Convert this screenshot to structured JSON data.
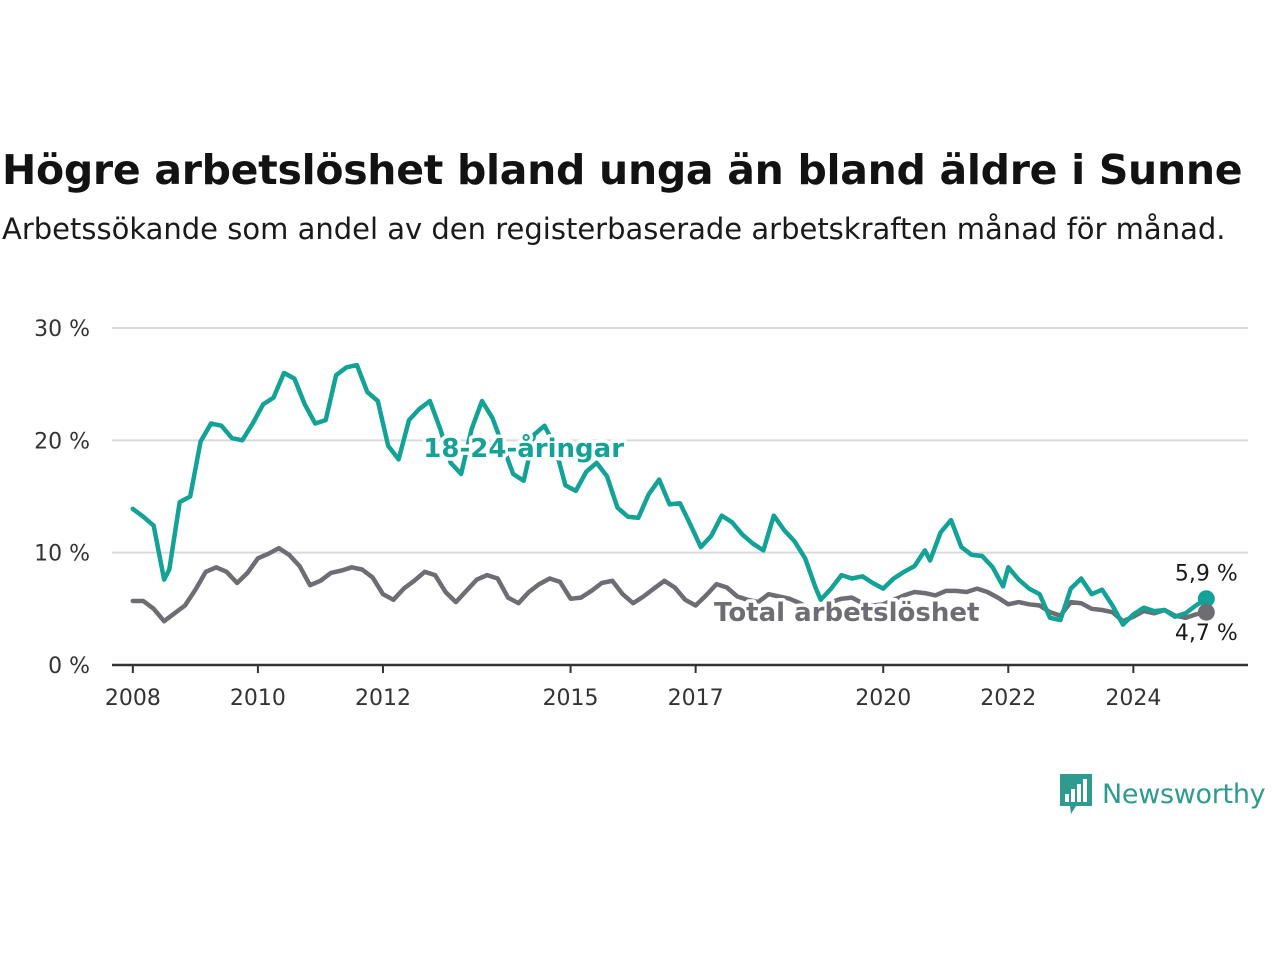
{
  "title": "Högre arbetslöshet bland unga än bland äldre i Sunne",
  "subtitle": "Arbetssökande som andel av den registerbaserade arbetskraften månad för månad.",
  "brand": {
    "name": "Newsworthy",
    "icon": "newsworthy-logo-icon"
  },
  "colors": {
    "youth": "#12a296",
    "total": "#6e6d73",
    "grid": "#d9d9de",
    "axis": "#333333"
  },
  "chart_data": {
    "type": "line",
    "title": "Högre arbetslöshet bland unga än bland äldre i Sunne",
    "subtitle": "Arbetssökande som andel av den registerbaserade arbetskraften månad för månad.",
    "x_tick_labels": [
      "2008",
      "2010",
      "2012",
      "2015",
      "2017",
      "2020",
      "2022",
      "2024"
    ],
    "y_tick_labels": [
      "0 %",
      "10 %",
      "20 %",
      "30 %"
    ],
    "ylim": [
      0,
      30
    ],
    "xlim": [
      "2007-09",
      "2025-11"
    ],
    "grid": "horizontal",
    "series": [
      {
        "name": "18-24-åringar",
        "end_label": "5,9 %",
        "points": [
          [
            "2008-01",
            13.9
          ],
          [
            "2008-03",
            13.2
          ],
          [
            "2008-05",
            12.4
          ],
          [
            "2008-07",
            7.6
          ],
          [
            "2008-08",
            8.5
          ],
          [
            "2008-10",
            14.5
          ],
          [
            "2008-12",
            15.0
          ],
          [
            "2009-02",
            19.9
          ],
          [
            "2009-04",
            21.5
          ],
          [
            "2009-06",
            21.3
          ],
          [
            "2009-08",
            20.2
          ],
          [
            "2009-10",
            20.0
          ],
          [
            "2009-12",
            21.5
          ],
          [
            "2010-02",
            23.2
          ],
          [
            "2010-04",
            23.8
          ],
          [
            "2010-06",
            26.0
          ],
          [
            "2010-08",
            25.5
          ],
          [
            "2010-10",
            23.2
          ],
          [
            "2010-12",
            21.5
          ],
          [
            "2011-02",
            21.8
          ],
          [
            "2011-04",
            25.8
          ],
          [
            "2011-06",
            26.5
          ],
          [
            "2011-08",
            26.7
          ],
          [
            "2011-10",
            24.3
          ],
          [
            "2011-12",
            23.5
          ],
          [
            "2012-02",
            19.5
          ],
          [
            "2012-04",
            18.3
          ],
          [
            "2012-06",
            21.8
          ],
          [
            "2012-08",
            22.8
          ],
          [
            "2012-10",
            23.5
          ],
          [
            "2012-12",
            21.0
          ],
          [
            "2013-02",
            18.0
          ],
          [
            "2013-04",
            17.0
          ],
          [
            "2013-06",
            21.0
          ],
          [
            "2013-08",
            23.5
          ],
          [
            "2013-10",
            22.0
          ],
          [
            "2013-12",
            19.5
          ],
          [
            "2014-02",
            17.0
          ],
          [
            "2014-04",
            16.4
          ],
          [
            "2014-06",
            20.5
          ],
          [
            "2014-08",
            21.3
          ],
          [
            "2014-10",
            19.5
          ],
          [
            "2014-12",
            16.0
          ],
          [
            "2015-02",
            15.5
          ],
          [
            "2015-04",
            17.2
          ],
          [
            "2015-06",
            18.0
          ],
          [
            "2015-08",
            16.8
          ],
          [
            "2015-10",
            14.0
          ],
          [
            "2015-12",
            13.2
          ],
          [
            "2016-02",
            13.1
          ],
          [
            "2016-04",
            15.2
          ],
          [
            "2016-06",
            16.5
          ],
          [
            "2016-08",
            14.3
          ],
          [
            "2016-10",
            14.4
          ],
          [
            "2016-12",
            12.5
          ],
          [
            "2017-02",
            10.5
          ],
          [
            "2017-04",
            11.5
          ],
          [
            "2017-06",
            13.3
          ],
          [
            "2017-08",
            12.7
          ],
          [
            "2017-10",
            11.6
          ],
          [
            "2017-12",
            10.8
          ],
          [
            "2018-02",
            10.2
          ],
          [
            "2018-04",
            13.3
          ],
          [
            "2018-06",
            12.0
          ],
          [
            "2018-08",
            11.0
          ],
          [
            "2018-10",
            9.5
          ],
          [
            "2018-12",
            6.9
          ],
          [
            "2019-01",
            5.8
          ],
          [
            "2019-03",
            6.8
          ],
          [
            "2019-05",
            8.0
          ],
          [
            "2019-07",
            7.7
          ],
          [
            "2019-09",
            7.9
          ],
          [
            "2019-11",
            7.3
          ],
          [
            "2020-01",
            6.8
          ],
          [
            "2020-03",
            7.7
          ],
          [
            "2020-05",
            8.3
          ],
          [
            "2020-07",
            8.8
          ],
          [
            "2020-09",
            10.2
          ],
          [
            "2020-10",
            9.3
          ],
          [
            "2020-12",
            11.8
          ],
          [
            "2021-02",
            12.9
          ],
          [
            "2021-04",
            10.5
          ],
          [
            "2021-06",
            9.8
          ],
          [
            "2021-08",
            9.7
          ],
          [
            "2021-10",
            8.7
          ],
          [
            "2021-12",
            7.0
          ],
          [
            "2022-01",
            8.7
          ],
          [
            "2022-03",
            7.6
          ],
          [
            "2022-05",
            6.8
          ],
          [
            "2022-07",
            6.3
          ],
          [
            "2022-09",
            4.2
          ],
          [
            "2022-11",
            4.0
          ],
          [
            "2023-01",
            6.8
          ],
          [
            "2023-03",
            7.7
          ],
          [
            "2023-05",
            6.3
          ],
          [
            "2023-07",
            6.7
          ],
          [
            "2023-09",
            5.3
          ],
          [
            "2023-11",
            3.6
          ],
          [
            "2024-01",
            4.5
          ],
          [
            "2024-03",
            5.1
          ],
          [
            "2024-05",
            4.8
          ],
          [
            "2024-07",
            4.9
          ],
          [
            "2024-09",
            4.3
          ],
          [
            "2024-11",
            4.6
          ],
          [
            "2025-01",
            5.3
          ],
          [
            "2025-03",
            5.9
          ]
        ]
      },
      {
        "name": "Total arbetslöshet",
        "end_label": "4,7 %",
        "points": [
          [
            "2008-01",
            5.7
          ],
          [
            "2008-03",
            5.7
          ],
          [
            "2008-05",
            5.0
          ],
          [
            "2008-07",
            3.9
          ],
          [
            "2008-09",
            4.6
          ],
          [
            "2008-11",
            5.3
          ],
          [
            "2009-01",
            6.7
          ],
          [
            "2009-03",
            8.3
          ],
          [
            "2009-05",
            8.7
          ],
          [
            "2009-07",
            8.3
          ],
          [
            "2009-09",
            7.3
          ],
          [
            "2009-11",
            8.2
          ],
          [
            "2010-01",
            9.5
          ],
          [
            "2010-03",
            9.9
          ],
          [
            "2010-05",
            10.4
          ],
          [
            "2010-07",
            9.8
          ],
          [
            "2010-09",
            8.8
          ],
          [
            "2010-11",
            7.1
          ],
          [
            "2011-01",
            7.5
          ],
          [
            "2011-03",
            8.2
          ],
          [
            "2011-05",
            8.4
          ],
          [
            "2011-07",
            8.7
          ],
          [
            "2011-09",
            8.5
          ],
          [
            "2011-11",
            7.8
          ],
          [
            "2012-01",
            6.3
          ],
          [
            "2012-03",
            5.8
          ],
          [
            "2012-05",
            6.8
          ],
          [
            "2012-07",
            7.5
          ],
          [
            "2012-09",
            8.3
          ],
          [
            "2012-11",
            8.0
          ],
          [
            "2013-01",
            6.5
          ],
          [
            "2013-03",
            5.6
          ],
          [
            "2013-05",
            6.6
          ],
          [
            "2013-07",
            7.6
          ],
          [
            "2013-09",
            8.0
          ],
          [
            "2013-11",
            7.7
          ],
          [
            "2014-01",
            6.0
          ],
          [
            "2014-03",
            5.5
          ],
          [
            "2014-05",
            6.5
          ],
          [
            "2014-07",
            7.2
          ],
          [
            "2014-09",
            7.7
          ],
          [
            "2014-11",
            7.4
          ],
          [
            "2015-01",
            5.9
          ],
          [
            "2015-03",
            6.0
          ],
          [
            "2015-05",
            6.6
          ],
          [
            "2015-07",
            7.3
          ],
          [
            "2015-09",
            7.5
          ],
          [
            "2015-11",
            6.3
          ],
          [
            "2016-01",
            5.5
          ],
          [
            "2016-03",
            6.1
          ],
          [
            "2016-05",
            6.8
          ],
          [
            "2016-07",
            7.5
          ],
          [
            "2016-09",
            6.9
          ],
          [
            "2016-11",
            5.8
          ],
          [
            "2017-01",
            5.3
          ],
          [
            "2017-03",
            6.2
          ],
          [
            "2017-05",
            7.2
          ],
          [
            "2017-07",
            6.9
          ],
          [
            "2017-09",
            6.1
          ],
          [
            "2017-11",
            5.8
          ],
          [
            "2018-01",
            5.6
          ],
          [
            "2018-03",
            6.3
          ],
          [
            "2018-05",
            6.1
          ],
          [
            "2018-07",
            5.9
          ],
          [
            "2018-09",
            5.5
          ],
          [
            "2018-11",
            5.0
          ],
          [
            "2019-01",
            5.2
          ],
          [
            "2019-03",
            5.6
          ],
          [
            "2019-05",
            5.9
          ],
          [
            "2019-07",
            6.0
          ],
          [
            "2019-09",
            5.5
          ],
          [
            "2019-11",
            5.3
          ],
          [
            "2020-01",
            5.4
          ],
          [
            "2020-03",
            5.8
          ],
          [
            "2020-05",
            6.2
          ],
          [
            "2020-07",
            6.5
          ],
          [
            "2020-09",
            6.4
          ],
          [
            "2020-11",
            6.2
          ],
          [
            "2021-01",
            6.6
          ],
          [
            "2021-03",
            6.6
          ],
          [
            "2021-05",
            6.5
          ],
          [
            "2021-07",
            6.8
          ],
          [
            "2021-09",
            6.5
          ],
          [
            "2021-11",
            6.0
          ],
          [
            "2022-01",
            5.4
          ],
          [
            "2022-03",
            5.6
          ],
          [
            "2022-05",
            5.4
          ],
          [
            "2022-07",
            5.3
          ],
          [
            "2022-09",
            4.7
          ],
          [
            "2022-11",
            4.4
          ],
          [
            "2023-01",
            5.6
          ],
          [
            "2023-03",
            5.5
          ],
          [
            "2023-05",
            5.0
          ],
          [
            "2023-07",
            4.9
          ],
          [
            "2023-09",
            4.7
          ],
          [
            "2023-11",
            3.9
          ],
          [
            "2024-01",
            4.3
          ],
          [
            "2024-03",
            4.8
          ],
          [
            "2024-05",
            4.6
          ],
          [
            "2024-07",
            4.9
          ],
          [
            "2024-09",
            4.4
          ],
          [
            "2024-11",
            4.2
          ],
          [
            "2025-01",
            4.5
          ],
          [
            "2025-03",
            4.7
          ]
        ]
      }
    ]
  }
}
